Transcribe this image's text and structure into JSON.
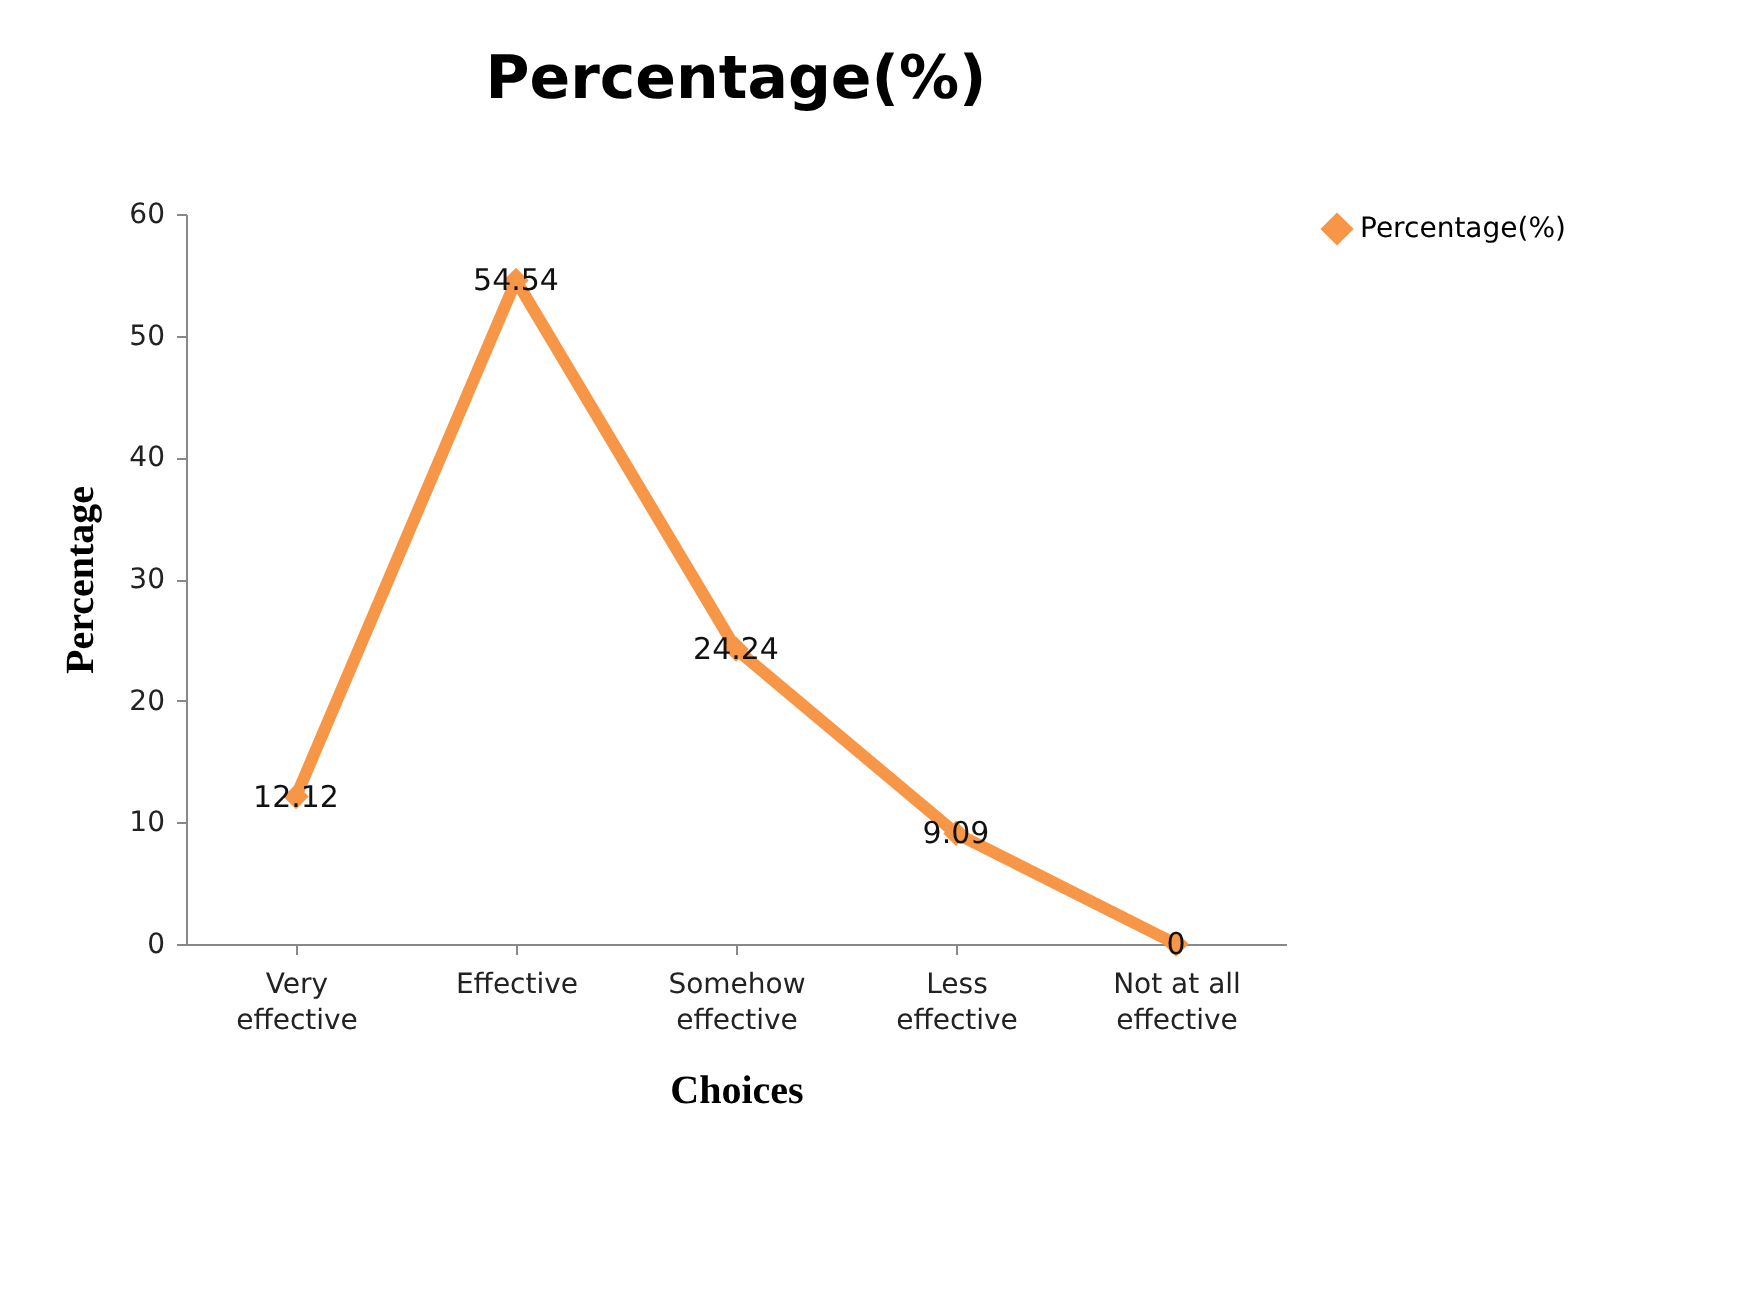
{
  "chart_data": {
    "type": "line",
    "title": "Percentage(%)",
    "xlabel": "Choices",
    "ylabel": "Percentage",
    "categories": [
      "Very effective",
      "Effective",
      "Somehow effective",
      "Less effective",
      "Not at all effective"
    ],
    "series": [
      {
        "name": "Percentage(%)",
        "color": "#f79646",
        "values": [
          12.12,
          54.54,
          24.24,
          9.09,
          0
        ]
      }
    ],
    "ylim": [
      0,
      60
    ],
    "yticks": [
      0,
      10,
      20,
      30,
      40,
      50,
      60
    ],
    "grid": false,
    "legend": "right",
    "marker": "diamond",
    "line_style": "solid",
    "data_labels": true
  }
}
